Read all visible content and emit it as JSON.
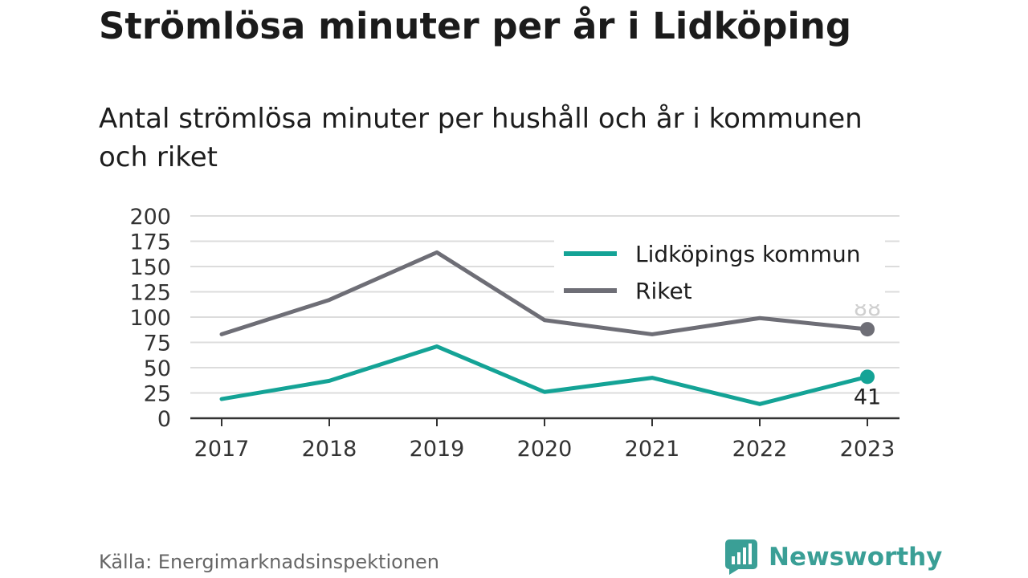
{
  "header": {
    "title": "Strömlösa minuter per år i Lidköping",
    "subtitle": "Antal strömlösa minuter per hushåll och år i kommunen och riket"
  },
  "footer": {
    "source": "Källa: Energimarknadsinspektionen",
    "brand_name": "Newsworthy",
    "brand_icon": "newsworthy-logo-icon"
  },
  "colors": {
    "lidkoping": "#14a396",
    "riket": "#6e6e76",
    "gridline": "#dcdcdc",
    "axis": "#333333",
    "brand": "#3a9f96"
  },
  "chart_data": {
    "type": "line",
    "title": "Strömlösa minuter per år i Lidköping",
    "subtitle": "Antal strömlösa minuter per hushåll och år i kommunen och riket",
    "x": [
      "2017",
      "2018",
      "2019",
      "2020",
      "2021",
      "2022",
      "2023"
    ],
    "ylim": [
      0,
      200
    ],
    "yticks": [
      0,
      25,
      50,
      75,
      100,
      125,
      150,
      175,
      200
    ],
    "grid": true,
    "legend_position": "top-right",
    "series": [
      {
        "name": "Lidköpings kommun",
        "values": [
          19,
          37,
          71,
          26,
          40,
          14,
          41
        ],
        "color": "#14a396",
        "end_label": "41"
      },
      {
        "name": "Riket",
        "values": [
          83,
          117,
          164,
          97,
          83,
          99,
          88
        ],
        "color": "#6e6e76",
        "end_label": "88"
      }
    ]
  }
}
